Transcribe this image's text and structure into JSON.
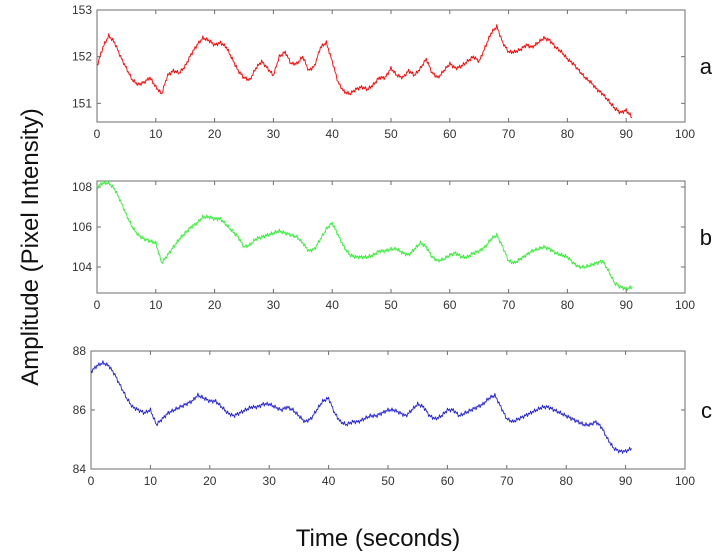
{
  "figure": {
    "ylabel": "Amplitude (Pixel Intensity)",
    "xlabel": "Time (seconds)"
  },
  "chart_data": [
    {
      "type": "line",
      "panel_label": "a",
      "xlim": [
        0,
        100
      ],
      "ylim": [
        150.6,
        153
      ],
      "xticks": [
        0,
        10,
        20,
        30,
        40,
        50,
        60,
        70,
        80,
        90,
        100
      ],
      "yticks": [
        151,
        152,
        153
      ],
      "grid": false,
      "series": [
        {
          "color": "#ff0000",
          "x": [
            0,
            1,
            2,
            3,
            4,
            5,
            6,
            7,
            8,
            9,
            10,
            11,
            12,
            13,
            14,
            15,
            16,
            17,
            18,
            19,
            20,
            21,
            22,
            23,
            24,
            25,
            26,
            27,
            28,
            29,
            30,
            31,
            32,
            33,
            34,
            35,
            36,
            37,
            38,
            39,
            40,
            41,
            42,
            43,
            44,
            45,
            46,
            47,
            48,
            49,
            50,
            51,
            52,
            53,
            54,
            55,
            56,
            57,
            58,
            59,
            60,
            61,
            62,
            63,
            64,
            65,
            66,
            67,
            68,
            69,
            70,
            71,
            72,
            73,
            74,
            75,
            76,
            77,
            78,
            79,
            80,
            81,
            82,
            83,
            84,
            85,
            86,
            87,
            88,
            89,
            90,
            91
          ],
          "y": [
            151.8,
            152.2,
            152.45,
            152.3,
            152.0,
            151.75,
            151.5,
            151.4,
            151.45,
            151.55,
            151.35,
            151.2,
            151.6,
            151.7,
            151.65,
            151.8,
            152.05,
            152.25,
            152.4,
            152.35,
            152.25,
            152.3,
            152.2,
            151.95,
            151.7,
            151.55,
            151.5,
            151.75,
            151.9,
            151.75,
            151.6,
            152.0,
            152.1,
            151.85,
            151.85,
            152.0,
            151.7,
            151.8,
            152.2,
            152.3,
            151.9,
            151.45,
            151.25,
            151.2,
            151.3,
            151.35,
            151.3,
            151.4,
            151.55,
            151.55,
            151.75,
            151.6,
            151.55,
            151.7,
            151.6,
            151.75,
            151.95,
            151.65,
            151.55,
            151.7,
            151.85,
            151.75,
            151.8,
            151.9,
            152.0,
            151.9,
            152.2,
            152.5,
            152.65,
            152.3,
            152.1,
            152.1,
            152.15,
            152.25,
            152.2,
            152.3,
            152.4,
            152.35,
            152.2,
            152.1,
            151.95,
            151.85,
            151.7,
            151.55,
            151.45,
            151.3,
            151.2,
            151.05,
            150.9,
            150.8,
            150.85,
            150.7
          ]
        }
      ]
    },
    {
      "type": "line",
      "panel_label": "b",
      "xlim": [
        0,
        100
      ],
      "ylim": [
        102.7,
        108.3
      ],
      "xticks": [
        0,
        10,
        20,
        30,
        40,
        50,
        60,
        70,
        80,
        90,
        100
      ],
      "yticks": [
        104,
        106,
        108
      ],
      "grid": false,
      "series": [
        {
          "color": "#33ee33",
          "x": [
            0,
            1,
            2,
            3,
            4,
            5,
            6,
            7,
            8,
            9,
            10,
            11,
            12,
            13,
            14,
            15,
            16,
            17,
            18,
            19,
            20,
            21,
            22,
            23,
            24,
            25,
            26,
            27,
            28,
            29,
            30,
            31,
            32,
            33,
            34,
            35,
            36,
            37,
            38,
            39,
            40,
            41,
            42,
            43,
            44,
            45,
            46,
            47,
            48,
            49,
            50,
            51,
            52,
            53,
            54,
            55,
            56,
            57,
            58,
            59,
            60,
            61,
            62,
            63,
            64,
            65,
            66,
            67,
            68,
            69,
            70,
            71,
            72,
            73,
            74,
            75,
            76,
            77,
            78,
            79,
            80,
            81,
            82,
            83,
            84,
            85,
            86,
            87,
            88,
            89,
            90,
            91
          ],
          "y": [
            108.0,
            108.2,
            108.2,
            107.9,
            107.3,
            106.6,
            106.0,
            105.6,
            105.4,
            105.3,
            105.2,
            104.2,
            104.6,
            105.0,
            105.4,
            105.7,
            106.0,
            106.2,
            106.5,
            106.5,
            106.4,
            106.4,
            106.1,
            105.8,
            105.5,
            105.0,
            105.1,
            105.4,
            105.5,
            105.6,
            105.7,
            105.8,
            105.7,
            105.6,
            105.5,
            105.2,
            104.8,
            104.9,
            105.4,
            105.9,
            106.2,
            105.6,
            105.0,
            104.6,
            104.5,
            104.5,
            104.5,
            104.6,
            104.8,
            104.8,
            104.9,
            104.9,
            104.7,
            104.6,
            104.9,
            105.2,
            105.0,
            104.5,
            104.3,
            104.4,
            104.6,
            104.7,
            104.5,
            104.5,
            104.7,
            104.8,
            105.0,
            105.4,
            105.6,
            105.0,
            104.3,
            104.2,
            104.4,
            104.6,
            104.8,
            104.9,
            105.0,
            104.9,
            104.7,
            104.6,
            104.5,
            104.2,
            104.0,
            104.0,
            104.1,
            104.2,
            104.3,
            103.8,
            103.2,
            103.0,
            102.9,
            103.0
          ]
        }
      ]
    },
    {
      "type": "line",
      "panel_label": "c",
      "xlim": [
        0,
        100
      ],
      "ylim": [
        84,
        88
      ],
      "xticks": [
        0,
        10,
        20,
        30,
        40,
        50,
        60,
        70,
        80,
        90,
        100
      ],
      "yticks": [
        84,
        86,
        88
      ],
      "grid": false,
      "series": [
        {
          "color": "#2222dd",
          "x": [
            0,
            1,
            2,
            3,
            4,
            5,
            6,
            7,
            8,
            9,
            10,
            11,
            12,
            13,
            14,
            15,
            16,
            17,
            18,
            19,
            20,
            21,
            22,
            23,
            24,
            25,
            26,
            27,
            28,
            29,
            30,
            31,
            32,
            33,
            34,
            35,
            36,
            37,
            38,
            39,
            40,
            41,
            42,
            43,
            44,
            45,
            46,
            47,
            48,
            49,
            50,
            51,
            52,
            53,
            54,
            55,
            56,
            57,
            58,
            59,
            60,
            61,
            62,
            63,
            64,
            65,
            66,
            67,
            68,
            69,
            70,
            71,
            72,
            73,
            74,
            75,
            76,
            77,
            78,
            79,
            80,
            81,
            82,
            83,
            84,
            85,
            86,
            87,
            88,
            89,
            90,
            91
          ],
          "y": [
            87.3,
            87.5,
            87.6,
            87.5,
            87.2,
            86.8,
            86.4,
            86.1,
            86.0,
            85.9,
            86.0,
            85.5,
            85.7,
            85.9,
            86.0,
            86.1,
            86.2,
            86.3,
            86.5,
            86.4,
            86.3,
            86.3,
            86.1,
            85.9,
            85.8,
            85.9,
            86.0,
            86.1,
            86.1,
            86.2,
            86.2,
            86.1,
            86.0,
            86.1,
            86.0,
            85.8,
            85.6,
            85.7,
            86.0,
            86.3,
            86.4,
            85.9,
            85.6,
            85.5,
            85.6,
            85.6,
            85.7,
            85.8,
            85.8,
            85.9,
            86.0,
            86.0,
            85.9,
            85.8,
            86.0,
            86.2,
            86.1,
            85.8,
            85.7,
            85.8,
            86.0,
            86.0,
            85.8,
            85.9,
            86.0,
            86.1,
            86.2,
            86.4,
            86.5,
            86.1,
            85.7,
            85.6,
            85.7,
            85.8,
            85.9,
            86.0,
            86.1,
            86.1,
            86.0,
            85.9,
            85.8,
            85.7,
            85.6,
            85.5,
            85.5,
            85.6,
            85.4,
            85.0,
            84.7,
            84.6,
            84.6,
            84.7
          ]
        }
      ]
    }
  ]
}
